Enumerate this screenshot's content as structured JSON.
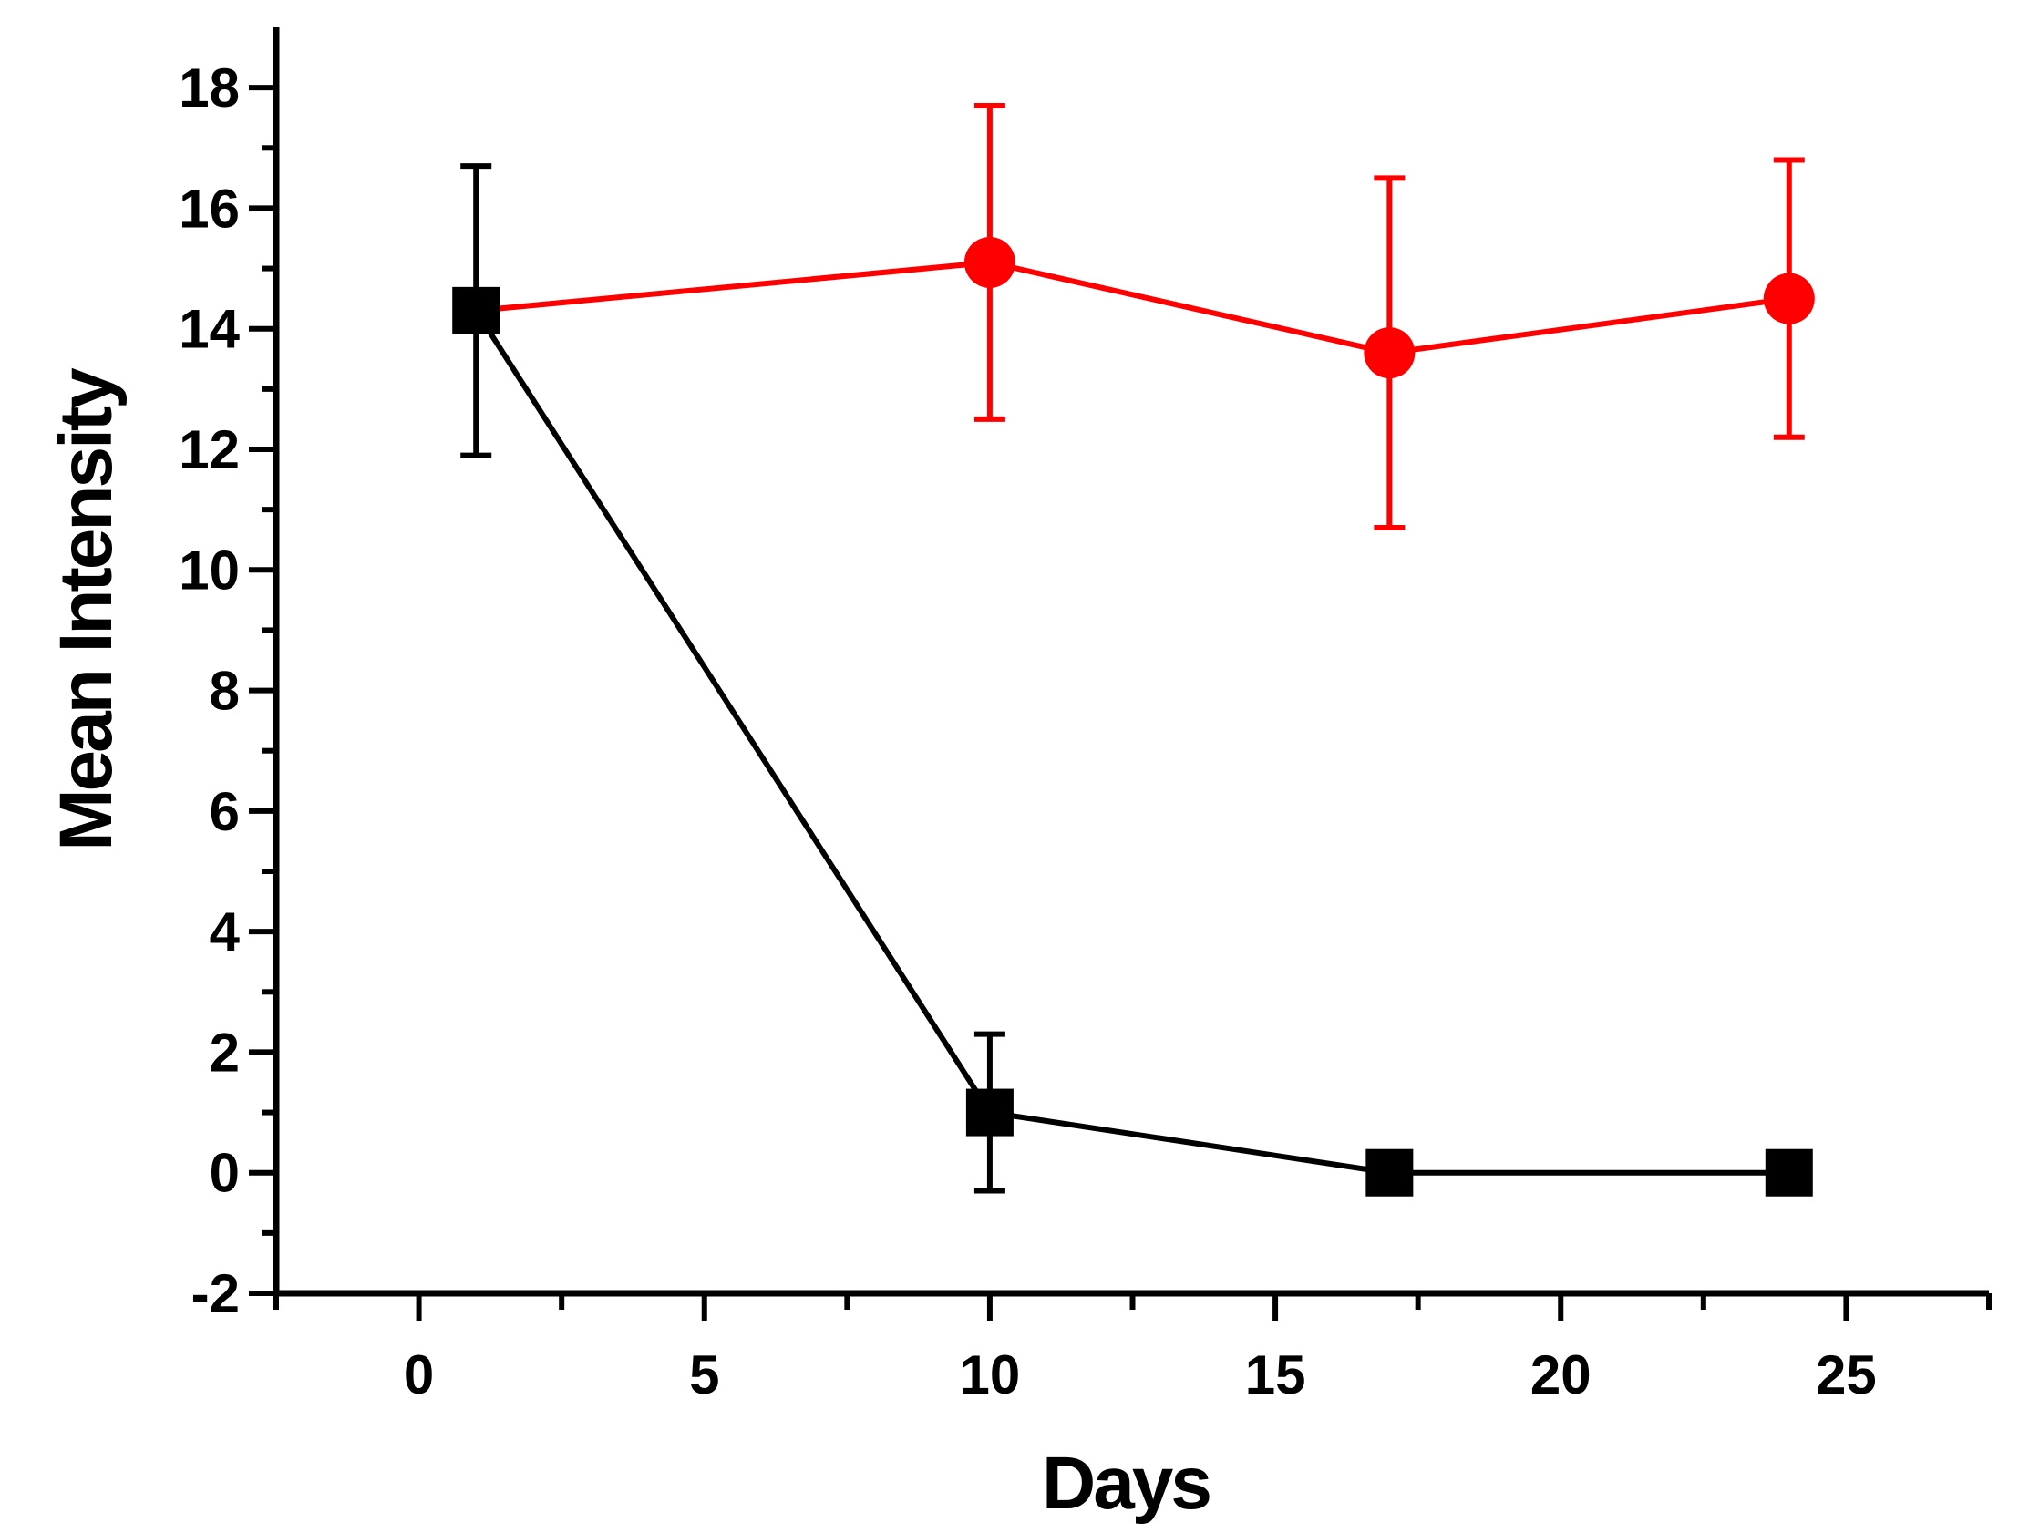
{
  "chart_data": {
    "type": "line",
    "title": "",
    "xlabel": "Days",
    "ylabel": "Mean Intensity",
    "xlim": [
      -2.5,
      27.5
    ],
    "ylim": [
      -2,
      19
    ],
    "xticks": [
      0,
      5,
      10,
      15,
      20,
      25
    ],
    "xtick_labels": [
      "0",
      "5",
      "10",
      "15",
      "20",
      "25"
    ],
    "yticks": [
      -2,
      0,
      2,
      4,
      6,
      8,
      10,
      12,
      14,
      16,
      18
    ],
    "ytick_labels": [
      "-2",
      "0",
      "2",
      "4",
      "6",
      "8",
      "10",
      "12",
      "14",
      "16",
      "18"
    ],
    "series": [
      {
        "name": "red-circles",
        "color": "#ff0000",
        "marker": "circle",
        "x": [
          10,
          17,
          24
        ],
        "y": [
          15.1,
          13.6,
          14.5
        ],
        "err_low": [
          12.5,
          10.7,
          12.2
        ],
        "err_high": [
          17.7,
          16.5,
          16.8
        ],
        "connect_from": {
          "x": 1,
          "y": 14.3
        }
      },
      {
        "name": "black-squares",
        "color": "#000000",
        "marker": "square",
        "x": [
          1,
          10,
          17,
          24
        ],
        "y": [
          14.3,
          1.0,
          0.0,
          0.0
        ],
        "err_low": [
          11.9,
          -0.3,
          null,
          null
        ],
        "err_high": [
          16.7,
          2.3,
          null,
          null
        ]
      }
    ]
  }
}
